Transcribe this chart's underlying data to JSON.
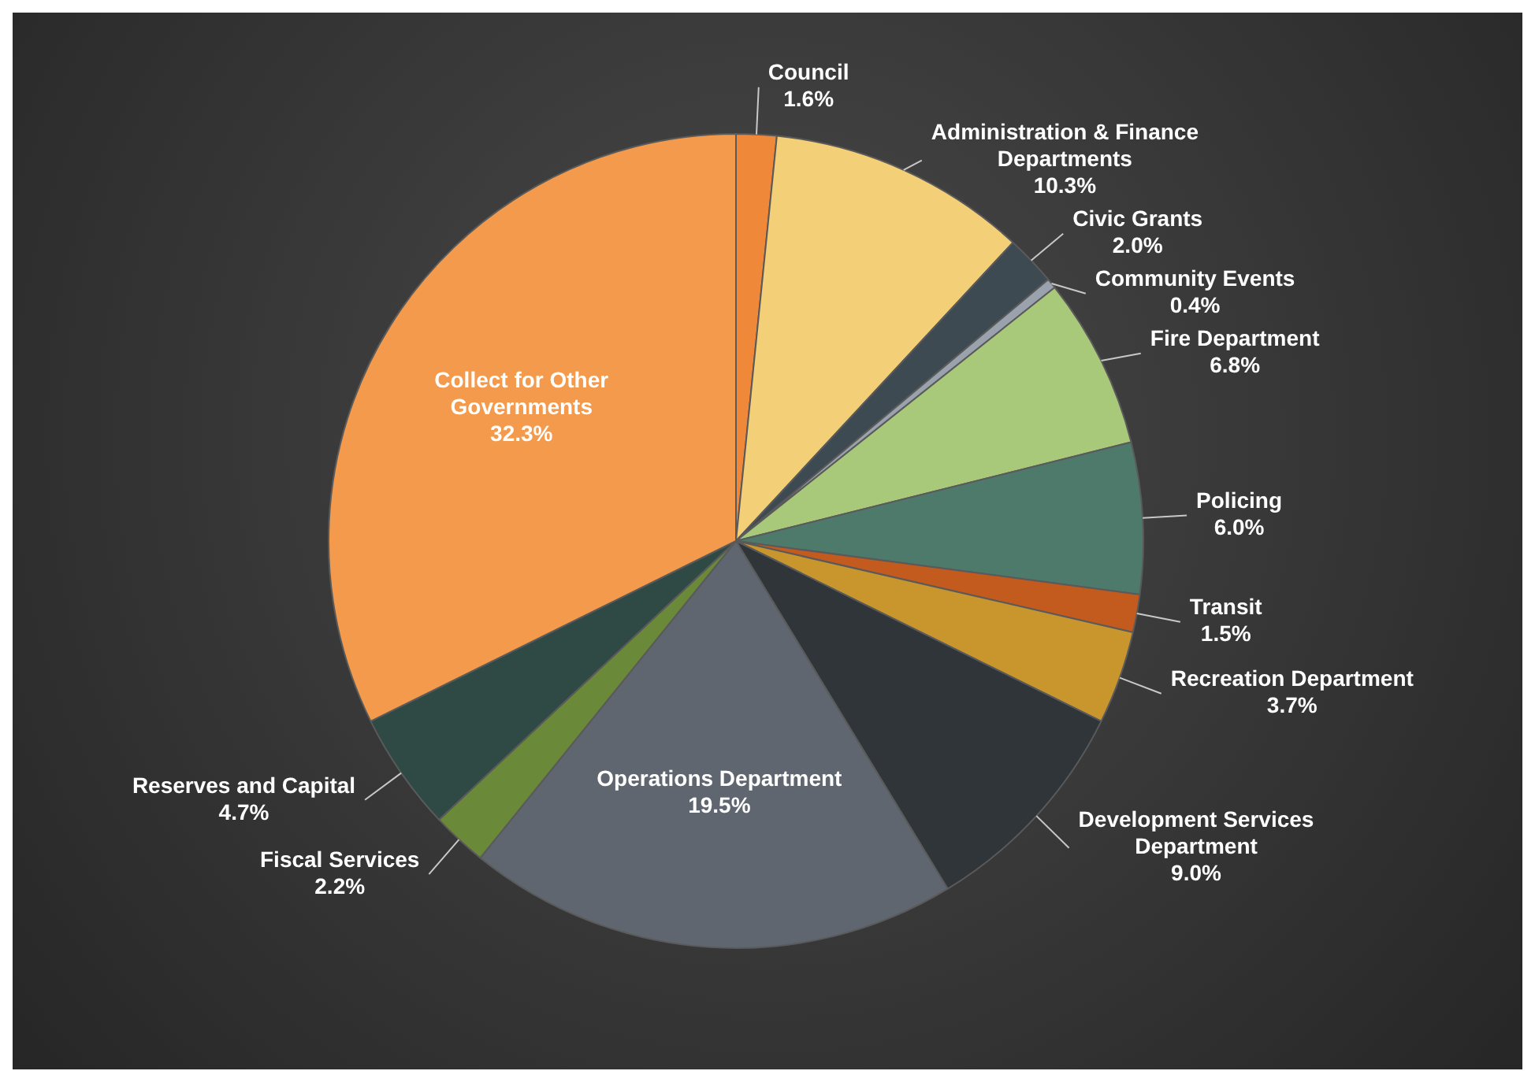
{
  "chart_data": {
    "type": "pie",
    "categories": [
      "Council",
      "Administration & Finance Departments",
      "Civic Grants",
      "Community Events",
      "Fire Department",
      "Policing",
      "Transit",
      "Recreation Department",
      "Development Services Department",
      "Operations Department",
      "Fiscal Services",
      "Reserves and Capital",
      "Collect for Other Governments"
    ],
    "values": [
      1.6,
      10.3,
      2.0,
      0.4,
      6.8,
      6.0,
      1.5,
      3.7,
      9.0,
      19.5,
      2.2,
      4.7,
      32.3
    ],
    "value_labels": [
      "1.6%",
      "10.3%",
      "2.0%",
      "0.4%",
      "6.8%",
      "6.0%",
      "1.5%",
      "3.7%",
      "9.0%",
      "19.5%",
      "2.2%",
      "4.7%",
      "32.3%"
    ],
    "colors": [
      "#f0883a",
      "#f3cf78",
      "#3e4a52",
      "#9aa3ad",
      "#a8c97a",
      "#4e7a6c",
      "#c35a1e",
      "#c9962e",
      "#2f3538",
      "#5f6670",
      "#6a8a3a",
      "#2f4a44",
      "#f49a4c"
    ],
    "legend": false
  }
}
